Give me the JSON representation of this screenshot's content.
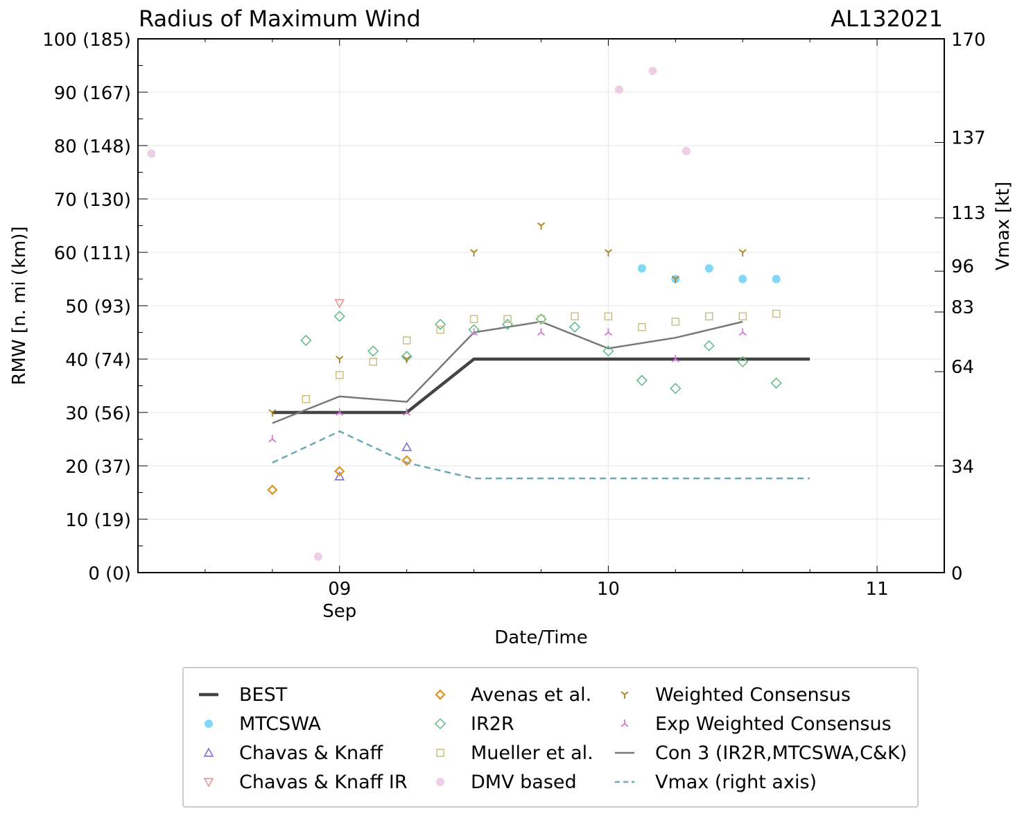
{
  "title_left": "Radius of Maximum Wind",
  "title_right": "AL132021",
  "chart_data": {
    "type": "line",
    "x_unit": "days since 09 Sep 00Z",
    "xlim": [
      -0.75,
      2.25
    ],
    "ylim": [
      0,
      100
    ],
    "y2lim": [
      0,
      170
    ],
    "xlabel": "Date/Time",
    "ylabel": "RMW [n. mi (km)]",
    "y2label": "Vmax [kt]",
    "x_ticks": [
      {
        "value": 0,
        "label": "09",
        "sublabel": "Sep"
      },
      {
        "value": 1,
        "label": "10"
      },
      {
        "value": 2,
        "label": "11"
      }
    ],
    "y_ticks": [
      {
        "value": 0,
        "label": "0 (0)"
      },
      {
        "value": 10,
        "label": "10 (19)"
      },
      {
        "value": 20,
        "label": "20 (37)"
      },
      {
        "value": 30,
        "label": "30 (56)"
      },
      {
        "value": 40,
        "label": "40 (74)"
      },
      {
        "value": 50,
        "label": "50 (93)"
      },
      {
        "value": 60,
        "label": "60 (111)"
      },
      {
        "value": 70,
        "label": "70 (130)"
      },
      {
        "value": 80,
        "label": "80 (148)"
      },
      {
        "value": 90,
        "label": "90 (167)"
      },
      {
        "value": 100,
        "label": "100 (185)"
      }
    ],
    "y2_ticks": [
      {
        "value": 0,
        "label": "0"
      },
      {
        "value": 34,
        "label": "34"
      },
      {
        "value": 64,
        "label": "64"
      },
      {
        "value": 83,
        "label": "83"
      },
      {
        "value": 96,
        "label": "96"
      },
      {
        "value": 113,
        "label": "113"
      },
      {
        "value": 137,
        "label": "137"
      },
      {
        "value": 170,
        "label": "170"
      }
    ],
    "series": [
      {
        "name": "BEST",
        "kind": "line",
        "color": "#444444",
        "dash": "",
        "width": 4.5,
        "points": [
          [
            -0.25,
            30
          ],
          [
            0,
            30
          ],
          [
            0.25,
            30
          ],
          [
            0.5,
            40
          ],
          [
            0.75,
            40
          ],
          [
            1,
            40
          ],
          [
            1.25,
            40
          ],
          [
            1.5,
            40
          ],
          [
            1.75,
            40
          ]
        ]
      },
      {
        "name": "Con 3 (IR2R,MTCSWA,C&K)",
        "kind": "line",
        "color": "#777777",
        "dash": "",
        "width": 2.5,
        "points": [
          [
            -0.25,
            28
          ],
          [
            0,
            33
          ],
          [
            0.25,
            32
          ],
          [
            0.5,
            45
          ],
          [
            0.75,
            47
          ],
          [
            1,
            42
          ],
          [
            1.25,
            44
          ],
          [
            1.5,
            47
          ]
        ]
      },
      {
        "name": "Vmax (right axis)",
        "kind": "line",
        "color": "#6aa9b5",
        "dash": "9,6",
        "width": 2.5,
        "axis": "right",
        "points": [
          [
            -0.25,
            35
          ],
          [
            0,
            45
          ],
          [
            0.25,
            35
          ],
          [
            0.5,
            30
          ],
          [
            0.75,
            30
          ],
          [
            1,
            30
          ],
          [
            1.25,
            30
          ],
          [
            1.5,
            30
          ],
          [
            1.75,
            30
          ]
        ]
      },
      {
        "name": "MTCSWA",
        "kind": "marker",
        "marker": "circle",
        "color": "#7fd8f6",
        "points": [
          [
            1.125,
            57
          ],
          [
            1.25,
            55
          ],
          [
            1.375,
            57
          ],
          [
            1.5,
            55
          ],
          [
            1.625,
            55
          ]
        ]
      },
      {
        "name": "Chavas & Knaff",
        "kind": "marker",
        "marker": "triangle-up",
        "color": "#7b6fd8",
        "points": [
          [
            0,
            18
          ],
          [
            0.25,
            23.5
          ]
        ]
      },
      {
        "name": "Chavas & Knaff IR",
        "kind": "marker",
        "marker": "triangle-down",
        "color": "#ee8f8f",
        "points": [
          [
            0,
            50.5
          ]
        ]
      },
      {
        "name": "Avenas et al.",
        "kind": "marker",
        "marker": "diamond",
        "color": "#e0972a",
        "points": [
          [
            -0.25,
            15.5
          ],
          [
            0,
            19
          ],
          [
            0.25,
            21
          ]
        ]
      },
      {
        "name": "IR2R",
        "kind": "marker",
        "marker": "diamond-open",
        "color": "#5cb887",
        "points": [
          [
            -0.125,
            43.5
          ],
          [
            0,
            48
          ],
          [
            0.125,
            41.5
          ],
          [
            0.25,
            40.5
          ],
          [
            0.375,
            46.5
          ],
          [
            0.5,
            45.5
          ],
          [
            0.625,
            46.5
          ],
          [
            0.75,
            47.5
          ],
          [
            0.875,
            46
          ],
          [
            1,
            41.5
          ],
          [
            1.125,
            36
          ],
          [
            1.25,
            34.5
          ],
          [
            1.375,
            42.5
          ],
          [
            1.5,
            39.5
          ],
          [
            1.625,
            35.5
          ]
        ]
      },
      {
        "name": "Mueller et al.",
        "kind": "marker",
        "marker": "square",
        "color": "#c8c080",
        "points": [
          [
            -0.125,
            32.5
          ],
          [
            0,
            37
          ],
          [
            0.125,
            39.5
          ],
          [
            0.25,
            43.5
          ],
          [
            0.375,
            45.5
          ],
          [
            0.5,
            47.5
          ],
          [
            0.625,
            47.5
          ],
          [
            0.75,
            47.5
          ],
          [
            0.875,
            48
          ],
          [
            1,
            48
          ],
          [
            1.125,
            46
          ],
          [
            1.25,
            47
          ],
          [
            1.375,
            48
          ],
          [
            1.5,
            48
          ],
          [
            1.625,
            48.5
          ]
        ]
      },
      {
        "name": "DMV based",
        "kind": "marker",
        "marker": "circle",
        "color": "#eecde6",
        "points": [
          [
            -0.7,
            78.5
          ],
          [
            -0.08,
            3
          ],
          [
            1.04,
            90.5
          ],
          [
            1.165,
            94
          ],
          [
            1.29,
            79
          ]
        ]
      },
      {
        "name": "Weighted Consensus",
        "kind": "marker",
        "marker": "tri-down",
        "color": "#a88020",
        "points": [
          [
            -0.25,
            30
          ],
          [
            0,
            40
          ],
          [
            0.25,
            40
          ],
          [
            0.5,
            60
          ],
          [
            0.75,
            65
          ],
          [
            1,
            60
          ],
          [
            1.25,
            55
          ],
          [
            1.5,
            60
          ]
        ]
      },
      {
        "name": "Exp Weighted Consensus",
        "kind": "marker",
        "marker": "tri-up",
        "color": "#d27ad4",
        "points": [
          [
            -0.25,
            25
          ],
          [
            0,
            30
          ],
          [
            0.25,
            30
          ],
          [
            0.5,
            45
          ],
          [
            0.75,
            45
          ],
          [
            1,
            45
          ],
          [
            1.25,
            40
          ],
          [
            1.5,
            45
          ]
        ]
      }
    ],
    "legend": [
      {
        "label": "BEST",
        "kind": "line",
        "color": "#444444",
        "dash": "",
        "width": 4.5
      },
      {
        "label": "MTCSWA",
        "kind": "marker",
        "marker": "circle",
        "color": "#7fd8f6"
      },
      {
        "label": "Chavas & Knaff",
        "kind": "marker",
        "marker": "triangle-up",
        "color": "#7b6fd8"
      },
      {
        "label": "Chavas & Knaff IR",
        "kind": "marker",
        "marker": "triangle-down",
        "color": "#ee8f8f"
      },
      {
        "label": "Avenas et al.",
        "kind": "marker",
        "marker": "diamond",
        "color": "#e0972a"
      },
      {
        "label": "IR2R",
        "kind": "marker",
        "marker": "diamond-open",
        "color": "#5cb887"
      },
      {
        "label": "Mueller et al.",
        "kind": "marker",
        "marker": "square",
        "color": "#c8c080"
      },
      {
        "label": "DMV based",
        "kind": "marker",
        "marker": "circle",
        "color": "#eecde6"
      },
      {
        "label": "Weighted Consensus",
        "kind": "marker",
        "marker": "tri-down",
        "color": "#a88020"
      },
      {
        "label": "Exp Weighted Consensus",
        "kind": "marker",
        "marker": "tri-up",
        "color": "#d27ad4"
      },
      {
        "label": "Con 3 (IR2R,MTCSWA,C&K)",
        "kind": "line",
        "color": "#777777",
        "dash": "",
        "width": 2.5
      },
      {
        "label": "Vmax (right axis)",
        "kind": "line",
        "color": "#6aa9b5",
        "dash": "9,6",
        "width": 2.5
      }
    ]
  }
}
